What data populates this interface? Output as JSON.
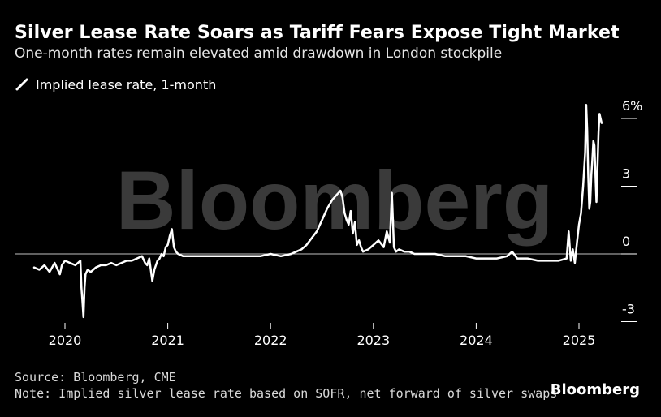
{
  "header": {
    "title": "Silver Lease Rate Soars as Tariff Fears Expose Tight Market",
    "subtitle": "One-month rates remain elevated amid drawdown in London stockpile"
  },
  "legend": {
    "label": "Implied lease rate, 1-month",
    "swatch_icon": "slash-icon"
  },
  "watermark": "Bloomberg",
  "footer": {
    "source": "Source: Bloomberg, CME",
    "note": "Note: Implied silver lease rate based on SOFR, net forward of silver swaps",
    "brand": "Bloomberg"
  },
  "colors": {
    "background": "#000000",
    "line": "#ffffff",
    "zero_line": "#bfbfbf",
    "watermark": "#3a3a3a"
  },
  "chart_data": {
    "type": "line",
    "title": "Silver Lease Rate Soars as Tariff Fears Expose Tight Market",
    "subtitle": "One-month rates remain elevated amid drawdown in London stockpile",
    "xlabel": "",
    "ylabel": "",
    "y_unit": "%",
    "ylim": [
      -3,
      6
    ],
    "xlim": [
      2019.75,
      2025.25
    ],
    "y_ticks": [
      6,
      3,
      0,
      -3
    ],
    "y_tick_labels": [
      "6%",
      "3",
      "0",
      "-3"
    ],
    "x_ticks": [
      2020,
      2021,
      2022,
      2023,
      2024,
      2025
    ],
    "x_tick_labels": [
      "2020",
      "2021",
      "2022",
      "2023",
      "2024",
      "2025"
    ],
    "grid": false,
    "legend_position": "top-left",
    "series": [
      {
        "name": "Implied lease rate, 1-month",
        "x": [
          2019.7,
          2019.75,
          2019.8,
          2019.85,
          2019.9,
          2019.95,
          2019.97,
          2020.0,
          2020.05,
          2020.1,
          2020.15,
          2020.16,
          2020.17,
          2020.18,
          2020.19,
          2020.2,
          2020.22,
          2020.25,
          2020.3,
          2020.35,
          2020.4,
          2020.45,
          2020.5,
          2020.55,
          2020.6,
          2020.65,
          2020.7,
          2020.75,
          2020.78,
          2020.8,
          2020.82,
          2020.85,
          2020.87,
          2020.9,
          2020.92,
          2020.94,
          2020.96,
          2020.98,
          2021.0,
          2021.02,
          2021.04,
          2021.05,
          2021.06,
          2021.08,
          2021.1,
          2021.15,
          2021.2,
          2021.3,
          2021.4,
          2021.5,
          2021.6,
          2021.7,
          2021.8,
          2021.9,
          2022.0,
          2022.1,
          2022.2,
          2022.25,
          2022.3,
          2022.35,
          2022.4,
          2022.45,
          2022.5,
          2022.55,
          2022.6,
          2022.62,
          2022.64,
          2022.66,
          2022.68,
          2022.7,
          2022.72,
          2022.74,
          2022.76,
          2022.78,
          2022.8,
          2022.82,
          2022.84,
          2022.86,
          2022.88,
          2022.9,
          2022.95,
          2023.0,
          2023.05,
          2023.1,
          2023.13,
          2023.16,
          2023.18,
          2023.2,
          2023.22,
          2023.25,
          2023.3,
          2023.35,
          2023.4,
          2023.45,
          2023.5,
          2023.6,
          2023.7,
          2023.8,
          2023.9,
          2024.0,
          2024.1,
          2024.2,
          2024.3,
          2024.35,
          2024.4,
          2024.5,
          2024.6,
          2024.7,
          2024.8,
          2024.88,
          2024.9,
          2024.92,
          2024.94,
          2024.96,
          2024.98,
          2025.0,
          2025.02,
          2025.04,
          2025.06,
          2025.07,
          2025.08,
          2025.09,
          2025.1,
          2025.11,
          2025.12,
          2025.13,
          2025.14,
          2025.15,
          2025.17,
          2025.19,
          2025.2,
          2025.22
        ],
        "values": [
          -0.6,
          -0.7,
          -0.5,
          -0.8,
          -0.4,
          -0.9,
          -0.5,
          -0.3,
          -0.4,
          -0.5,
          -0.3,
          -1.5,
          -2.1,
          -2.8,
          -1.5,
          -0.9,
          -0.7,
          -0.8,
          -0.6,
          -0.5,
          -0.5,
          -0.4,
          -0.5,
          -0.4,
          -0.3,
          -0.3,
          -0.2,
          -0.1,
          -0.4,
          -0.5,
          -0.2,
          -1.2,
          -0.7,
          -0.3,
          -0.2,
          0.0,
          -0.1,
          0.3,
          0.4,
          0.8,
          1.1,
          0.7,
          0.3,
          0.1,
          0.0,
          -0.1,
          -0.1,
          -0.1,
          -0.1,
          -0.1,
          -0.1,
          -0.1,
          -0.1,
          -0.1,
          0.0,
          -0.1,
          0.0,
          0.1,
          0.2,
          0.4,
          0.7,
          1.0,
          1.5,
          2.0,
          2.4,
          2.5,
          2.6,
          2.7,
          2.8,
          2.5,
          1.8,
          1.5,
          1.3,
          1.9,
          0.9,
          1.4,
          0.4,
          0.6,
          0.3,
          0.1,
          0.2,
          0.4,
          0.6,
          0.3,
          1.0,
          0.5,
          2.7,
          0.3,
          0.1,
          0.2,
          0.1,
          0.1,
          0.0,
          0.0,
          0.0,
          0.0,
          -0.1,
          -0.1,
          -0.1,
          -0.2,
          -0.2,
          -0.2,
          -0.1,
          0.1,
          -0.2,
          -0.2,
          -0.3,
          -0.3,
          -0.3,
          -0.2,
          1.0,
          -0.3,
          0.2,
          -0.4,
          0.5,
          1.3,
          1.8,
          3.0,
          4.5,
          6.6,
          5.5,
          3.5,
          2.0,
          2.3,
          3.5,
          4.2,
          5.0,
          4.8,
          2.3,
          5.4,
          6.2,
          5.8
        ]
      }
    ]
  }
}
